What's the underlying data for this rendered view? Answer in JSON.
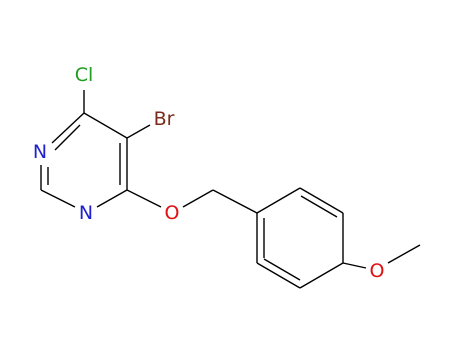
{
  "atoms": [
    {
      "label": "Cl"
    },
    {
      "label": "Br"
    },
    {
      "label": "N"
    },
    {
      "label": "N"
    },
    {
      "label": "O"
    },
    {
      "label": "O"
    }
  ]
}
